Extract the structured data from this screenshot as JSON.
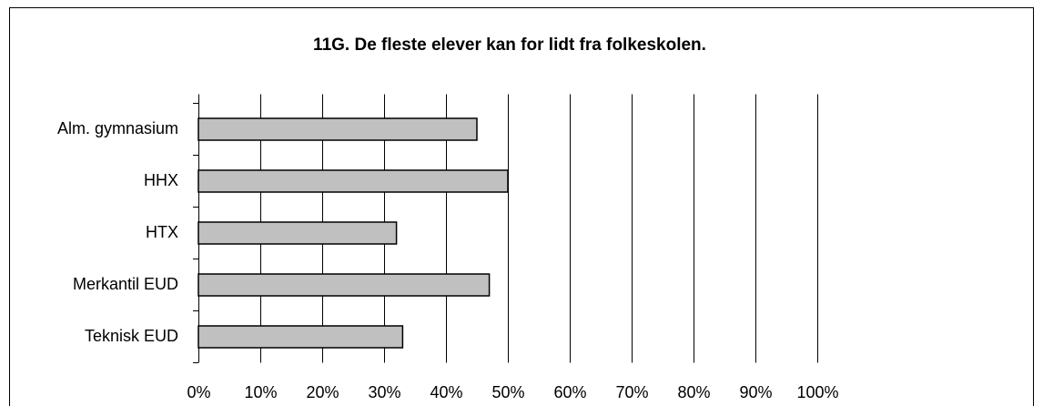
{
  "chart_data": {
    "type": "barh",
    "title": "11G. De fleste elever kan for lidt fra folkeskolen.",
    "categories": [
      "Alm. gymnasium",
      "HHX",
      "HTX",
      "Merkantil EUD",
      "Teknisk EUD"
    ],
    "values": [
      45,
      50,
      32,
      47,
      33
    ],
    "color": "#c0c0c0",
    "xlim": [
      0,
      100
    ],
    "xticks": [
      {
        "value": 0,
        "label": "0%"
      },
      {
        "value": 10,
        "label": "10%"
      },
      {
        "value": 20,
        "label": "20%"
      },
      {
        "value": 30,
        "label": "30%"
      },
      {
        "value": 40,
        "label": "40%"
      },
      {
        "value": 50,
        "label": "50%"
      },
      {
        "value": 60,
        "label": "60%"
      },
      {
        "value": 70,
        "label": "70%"
      },
      {
        "value": 80,
        "label": "80%"
      },
      {
        "value": 90,
        "label": "90%"
      },
      {
        "value": 100,
        "label": "100%"
      }
    ],
    "grid": true
  }
}
